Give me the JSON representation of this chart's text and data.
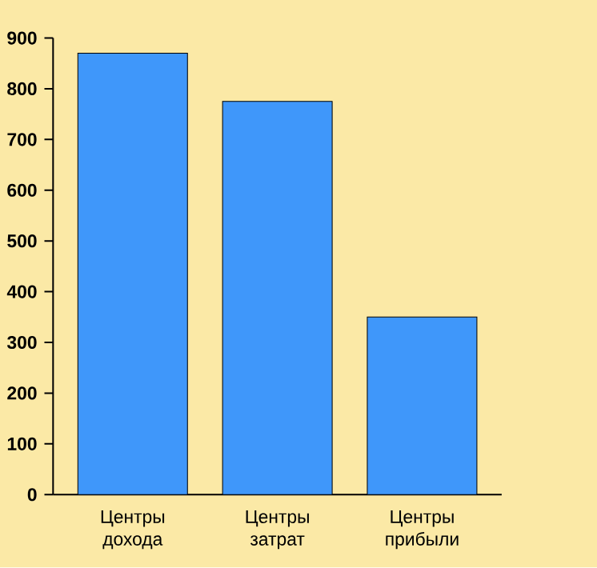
{
  "chart_data": {
    "type": "bar",
    "categories": [
      "Центры дохода",
      "Центры затрат",
      "Центры прибыли"
    ],
    "values": [
      870,
      775,
      350
    ],
    "color": "#3f97fa",
    "ylim": [
      0,
      900
    ],
    "yticks": [
      0,
      100,
      200,
      300,
      400,
      500,
      600,
      700,
      800,
      900
    ],
    "grid": false
  }
}
